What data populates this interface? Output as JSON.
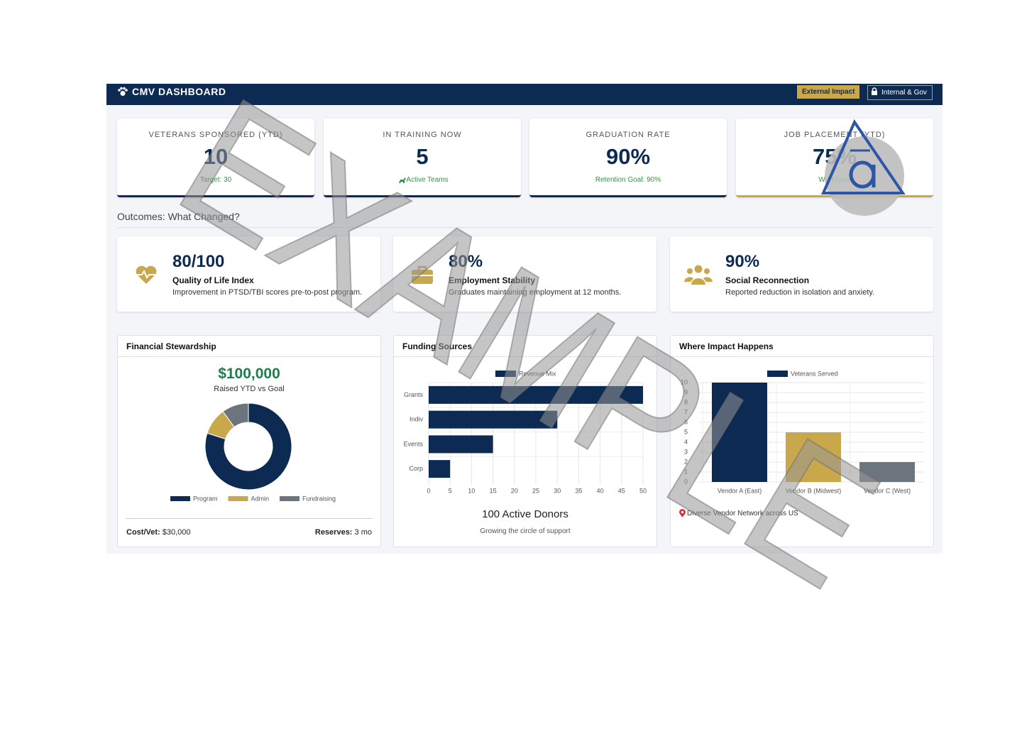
{
  "header": {
    "title": "CMV DASHBOARD",
    "buttons": [
      "External Impact",
      "Internal & Gov"
    ]
  },
  "kpis": [
    {
      "label": "VETERANS SPONSORED (YTD)",
      "value": "10",
      "note": "Target: 30"
    },
    {
      "label": "IN TRAINING NOW",
      "value": "5",
      "note": "Active Teams"
    },
    {
      "label": "GRADUATION RATE",
      "value": "90%",
      "note": "Retention Goal: 90%"
    },
    {
      "label": "JOB PLACEMENT (YTD)",
      "value": "75%",
      "note": "Workforce"
    }
  ],
  "outcomes": {
    "title": "Outcomes: What Changed?",
    "items": [
      {
        "value": "80/100",
        "title": "Quality of Life Index",
        "text": "Improvement in PTSD/TBI scores pre-to-post program."
      },
      {
        "value": "80%",
        "title": "Employment Stability",
        "text": "Graduates maintaining employment at 12 months."
      },
      {
        "value": "90%",
        "title": "Social Reconnection",
        "text": "Reported reduction in isolation and anxiety."
      }
    ]
  },
  "panels": {
    "financial": {
      "title": "Financial Stewardship",
      "amount": "$100,000",
      "amount_label": "Raised YTD vs Goal",
      "chart": {
        "type": "donut",
        "categories": [
          "Program",
          "Admin",
          "Fundraising"
        ],
        "values": [
          80,
          10,
          10
        ],
        "colors": [
          "#0d2b52",
          "#c9a84c",
          "#6c757d"
        ]
      },
      "footer": [
        {
          "label": "Cost/Vet:",
          "value": "$30,000"
        },
        {
          "label": "Reserves:",
          "value": "3 mo"
        }
      ]
    },
    "funding": {
      "title": "Funding Sources",
      "chart": {
        "type": "hbar",
        "series": [
          {
            "name": "Revenue Mix",
            "color": "#0d2b52",
            "values": [
              50,
              30,
              15,
              5
            ]
          }
        ],
        "categories": [
          "Grants",
          "Indiv",
          "Events",
          "Corp"
        ],
        "xlim": [
          0,
          50
        ],
        "xticks": [
          0,
          5,
          10,
          15,
          20,
          25,
          30,
          35,
          40,
          45,
          50
        ],
        "grid": true
      },
      "headline": "100 Active Donors",
      "subtext": "Growing the circle of support"
    },
    "impact": {
      "title": "Where Impact Happens",
      "chart": {
        "type": "bar",
        "series": [
          {
            "name": "Veterans Served",
            "color": "#0d2b52",
            "values": [
              10,
              5,
              2
            ]
          }
        ],
        "colors": [
          "#0d2b52",
          "#c9a84c",
          "#6c757d"
        ],
        "categories": [
          "Vendor A (East)",
          "Vendor B (Midwest)",
          "Vendor C (West)"
        ],
        "ylim": [
          0,
          10
        ],
        "yticks": [
          0,
          1,
          2,
          3,
          4,
          5,
          6,
          7,
          8,
          9,
          10
        ],
        "grid": true
      },
      "note": "Diverse Vendor Network across US"
    }
  },
  "watermark": "EXAMPLE"
}
